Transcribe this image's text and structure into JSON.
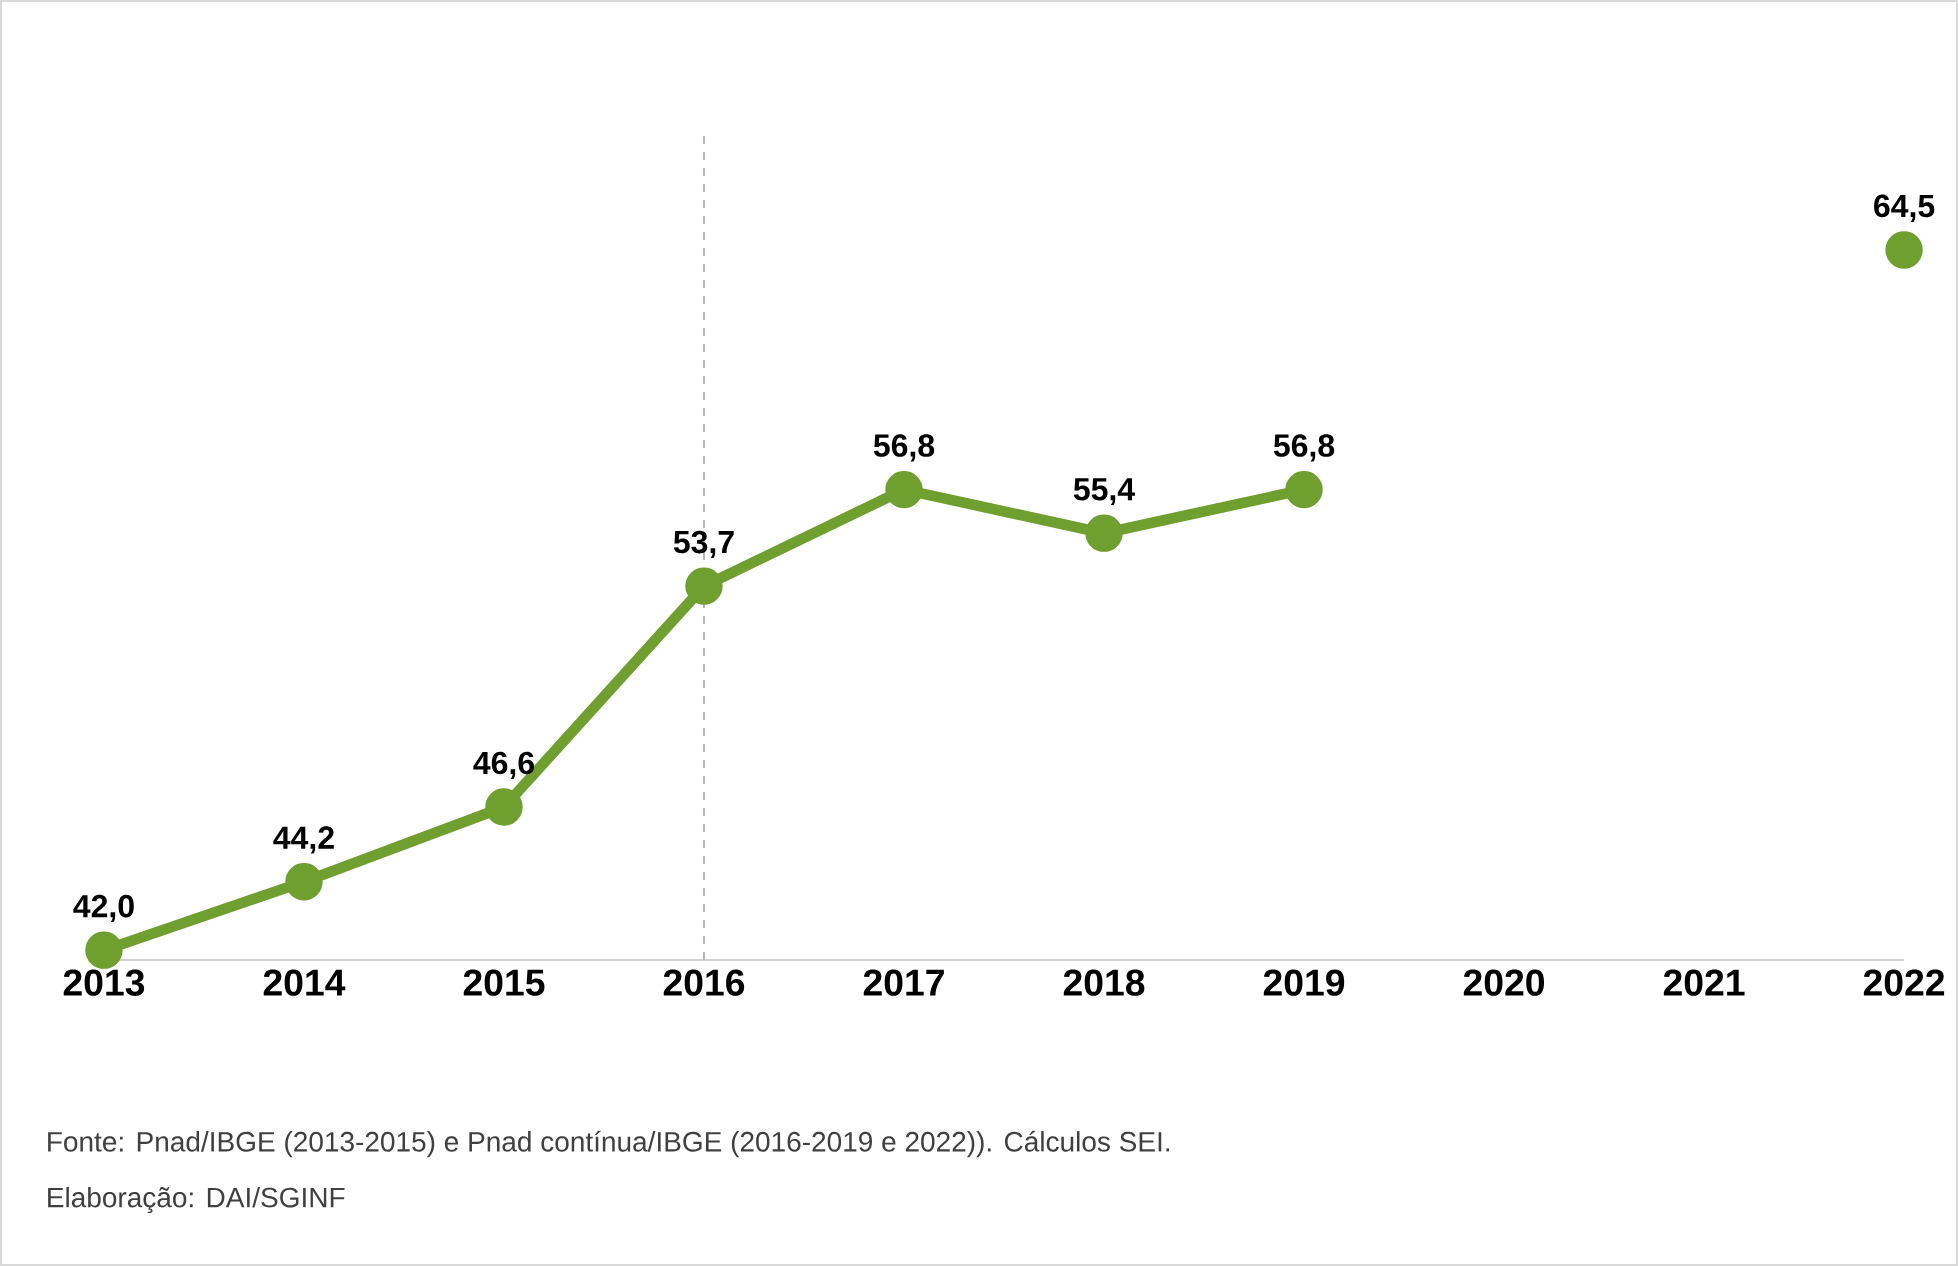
{
  "chart_data": {
    "type": "line",
    "categories": [
      "2013",
      "2014",
      "2015",
      "2016",
      "2017",
      "2018",
      "2019",
      "2020",
      "2021",
      "2022"
    ],
    "values": [
      42.0,
      44.2,
      46.6,
      53.7,
      56.8,
      55.4,
      56.8,
      null,
      null,
      64.5
    ],
    "value_labels": [
      "42,0",
      "44,2",
      "46,6",
      "53,7",
      "56,8",
      "55,4",
      "56,8",
      null,
      null,
      "64,5"
    ],
    "color": "#6f9f2f",
    "marker": "circle",
    "line_style": "solid",
    "grid": false,
    "ref_lines": [
      {
        "axis": "x",
        "value": "2016",
        "color": "#a6a6a6",
        "line_style": "dashed"
      }
    ],
    "annotations": [
      "Fonte: Pnad/IBGE (2013-2015) e Pnad contínua/IBGE (2016-2019 e 2022)). Cálculos SEI.",
      "Elaboração: DAI/SGINF"
    ]
  }
}
